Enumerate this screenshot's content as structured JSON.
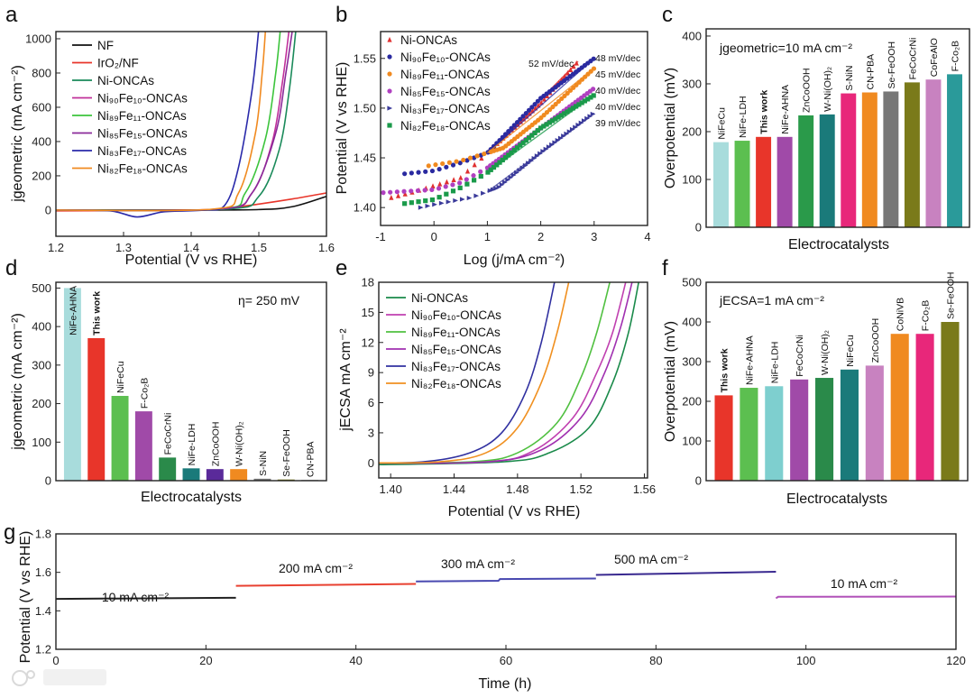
{
  "watermark": "大数跨境",
  "chart_data": [
    {
      "id": "a",
      "panel_label": "a",
      "type": "line",
      "xlabel": "Potential (V vs RHE)",
      "ylabel": "jgeometric (mA cm⁻²)",
      "xlim": [
        1.2,
        1.6
      ],
      "ylim": [
        -153,
        1042
      ],
      "xticks": [
        1.2,
        1.3,
        1.4,
        1.5,
        1.6
      ],
      "xtick_labels": [
        "1.2",
        "1.3",
        "1.4",
        "1.5",
        "1.6"
      ],
      "yticks": [
        0,
        200,
        400,
        600,
        800,
        1000
      ],
      "ytick_labels": [
        "0",
        "200",
        "400",
        "600",
        "800",
        "1000"
      ],
      "legend_position": "top-left",
      "series": [
        {
          "name": "NF",
          "color": "#111111",
          "points": [
            [
              1.2,
              0
            ],
            [
              1.4,
              0
            ],
            [
              1.5,
              3
            ],
            [
              1.55,
              20
            ],
            [
              1.6,
              80
            ]
          ]
        },
        {
          "name": "IrO₂/NF",
          "color": "#e8352a",
          "points": [
            [
              1.2,
              -5
            ],
            [
              1.4,
              0
            ],
            [
              1.45,
              10
            ],
            [
              1.5,
              35
            ],
            [
              1.55,
              65
            ],
            [
              1.6,
              100
            ]
          ]
        },
        {
          "name": "Ni-ONCAs",
          "color": "#1a8a5a",
          "points": [
            [
              1.2,
              0
            ],
            [
              1.45,
              5
            ],
            [
              1.5,
              80
            ],
            [
              1.53,
              350
            ],
            [
              1.545,
              700
            ],
            [
              1.555,
              1060
            ]
          ]
        },
        {
          "name": "Ni₉₀Fe₁₀-ONCAs",
          "color": "#c0309a",
          "points": [
            [
              1.2,
              0
            ],
            [
              1.44,
              5
            ],
            [
              1.49,
              100
            ],
            [
              1.52,
              400
            ],
            [
              1.535,
              750
            ],
            [
              1.545,
              1060
            ]
          ]
        },
        {
          "name": "Ni₈₉Fe₁₁-ONCAs",
          "color": "#3cc43c",
          "points": [
            [
              1.2,
              0
            ],
            [
              1.44,
              5
            ],
            [
              1.48,
              100
            ],
            [
              1.51,
              420
            ],
            [
              1.525,
              800
            ],
            [
              1.532,
              1060
            ]
          ]
        },
        {
          "name": "Ni₈₅Fe₁₅-ONCAs",
          "color": "#8a2a9a",
          "points": [
            [
              1.2,
              0
            ],
            [
              1.44,
              5
            ],
            [
              1.49,
              100
            ],
            [
              1.525,
              450
            ],
            [
              1.54,
              800
            ],
            [
              1.55,
              1060
            ]
          ]
        },
        {
          "name": "Ni₈₃Fe₁₇-ONCAs",
          "color": "#2a2aaa",
          "points": [
            [
              1.2,
              0
            ],
            [
              1.28,
              -5
            ],
            [
              1.32,
              -40
            ],
            [
              1.36,
              -10
            ],
            [
              1.42,
              0
            ],
            [
              1.45,
              30
            ],
            [
              1.47,
              250
            ],
            [
              1.49,
              700
            ],
            [
              1.5,
              1060
            ]
          ]
        },
        {
          "name": "Ni₈₂Fe₁₈-ONCAs",
          "color": "#f08a20",
          "points": [
            [
              1.2,
              0
            ],
            [
              1.43,
              5
            ],
            [
              1.47,
              100
            ],
            [
              1.495,
              450
            ],
            [
              1.505,
              800
            ],
            [
              1.51,
              1060
            ]
          ]
        }
      ]
    },
    {
      "id": "b",
      "panel_label": "b",
      "type": "scatter",
      "xlabel": "Log (j/mA cm⁻²)",
      "ylabel": "Potential (V vs RHE)",
      "xlim": [
        -1,
        4
      ],
      "ylim": [
        1.382,
        1.577
      ],
      "xticks": [
        -1,
        0,
        1,
        2,
        3,
        4
      ],
      "xtick_labels": [
        "-1",
        "0",
        "1",
        "2",
        "3",
        "4"
      ],
      "yticks": [
        1.4,
        1.45,
        1.5,
        1.55
      ],
      "ytick_labels": [
        "1.40",
        "1.45",
        "1.50",
        "1.55"
      ],
      "legend_position": "top-left",
      "series": [
        {
          "name": "Ni-ONCAs",
          "color": "#e03030",
          "marker": "triangle",
          "tafel_slope": "52 mV/dec",
          "points": [
            [
              -0.8,
              1.41
            ],
            [
              -0.3,
              1.417
            ],
            [
              0.5,
              1.43
            ],
            [
              1,
              1.455
            ],
            [
              2,
              1.505
            ],
            [
              2.7,
              1.547
            ]
          ]
        },
        {
          "name": "Ni₉₀Fe₁₀-ONCAs",
          "color": "#2a2aa0",
          "marker": "circle",
          "tafel_slope": "48 mV/dec",
          "points": [
            [
              -0.55,
              1.434
            ],
            [
              0,
              1.437
            ],
            [
              0.5,
              1.445
            ],
            [
              1,
              1.455
            ],
            [
              2,
              1.51
            ],
            [
              3,
              1.55
            ]
          ]
        },
        {
          "name": "Ni₈₉Fe₁₁-ONCAs",
          "color": "#f08a20",
          "marker": "circle",
          "tafel_slope": "45 mV/dec",
          "points": [
            [
              -0.1,
              1.442
            ],
            [
              0.5,
              1.447
            ],
            [
              1,
              1.455
            ],
            [
              1.3,
              1.46
            ],
            [
              2,
              1.49
            ],
            [
              3,
              1.54
            ]
          ]
        },
        {
          "name": "Ni₈₅Fe₁₅-ONCAs",
          "color": "#b040c0",
          "marker": "circle",
          "tafel_slope": "40 mV/dec",
          "points": [
            [
              -0.95,
              1.415
            ],
            [
              0,
              1.418
            ],
            [
              0.5,
              1.425
            ],
            [
              1,
              1.44
            ],
            [
              2,
              1.48
            ],
            [
              3,
              1.52
            ]
          ]
        },
        {
          "name": "Ni₈₃Fe₁₇-ONCAs",
          "color": "#3a3a9a",
          "marker": "triangle-right",
          "tafel_slope": "39 mV/dec",
          "points": [
            [
              -0.25,
              1.4
            ],
            [
              0,
              1.403
            ],
            [
              0.7,
              1.41
            ],
            [
              1.2,
              1.42
            ],
            [
              2,
              1.455
            ],
            [
              3,
              1.495
            ]
          ]
        },
        {
          "name": "Ni₈₂Fe₁₈-ONCAs",
          "color": "#1a9a4a",
          "marker": "square",
          "tafel_slope": "40 mV/dec",
          "points": [
            [
              -0.55,
              1.404
            ],
            [
              0,
              1.408
            ],
            [
              0.5,
              1.42
            ],
            [
              1,
              1.435
            ],
            [
              2,
              1.48
            ],
            [
              3,
              1.513
            ]
          ]
        }
      ]
    },
    {
      "id": "c",
      "panel_label": "c",
      "type": "bar",
      "xlabel": "Electrocatalysts",
      "ylabel": "Overpotential (mV)",
      "annotation": "jgeometric=10 mA cm⁻²",
      "ylim": [
        0,
        415
      ],
      "yticks": [
        0,
        100,
        200,
        300,
        400
      ],
      "ytick_labels": [
        "0",
        "100",
        "200",
        "300",
        "400"
      ],
      "categories": [
        "NiFeCu",
        "NiFe-LDH",
        "This work",
        "NiFe-AHNA",
        "ZnCoOOH",
        "W-Ni(OH)₂",
        "S-NiN",
        "CN-PBA",
        "Se-FeOOH",
        "FeCoCrNi",
        "CoFeAlO",
        "F-Co₂B"
      ],
      "values": [
        178,
        181,
        189,
        189,
        234,
        236,
        280,
        282,
        284,
        303,
        309,
        320
      ],
      "colors": [
        "#a8dcdc",
        "#5cbf50",
        "#e8352a",
        "#a04aa8",
        "#2a9a4a",
        "#1a7a7a",
        "#e8277a",
        "#f08a20",
        "#777777",
        "#7a7a1a",
        "#c882c0",
        "#2a9a9a"
      ],
      "highlight": "This work"
    },
    {
      "id": "d",
      "panel_label": "d",
      "type": "bar",
      "xlabel": "Electrocatalysts",
      "ylabel": "jgeometric (mA cm⁻²)",
      "annotation": "η= 250 mV",
      "ylim": [
        0,
        515
      ],
      "yticks": [
        0,
        100,
        200,
        300,
        400,
        500
      ],
      "ytick_labels": [
        "0",
        "100",
        "200",
        "300",
        "400",
        "500"
      ],
      "categories": [
        "NiFe-AHNA",
        "This work",
        "NiFeCu",
        "F-Co₂B",
        "FeCoCrNi",
        "NiFe-LDH",
        "ZnCoOOH",
        "W-Ni(OH)₂",
        "S-NiN",
        "Se-FeOOH",
        "CN-PBA"
      ],
      "values": [
        500,
        370,
        220,
        180,
        60,
        32,
        30,
        30,
        5,
        3,
        2
      ],
      "colors": [
        "#a8dcdc",
        "#e8352a",
        "#5cbf50",
        "#a04aa8",
        "#2a8a4a",
        "#1a7a7a",
        "#5a2a9a",
        "#f08a20",
        "#777777",
        "#7a7a1a",
        "#aaaaaa"
      ],
      "highlight": "This work"
    },
    {
      "id": "e",
      "panel_label": "e",
      "type": "line",
      "xlabel": "Potential (V vs RHE)",
      "ylabel": "jECSA mA cm⁻²",
      "xlim": [
        1.3925,
        1.562
      ],
      "ylim": [
        -1.5,
        18
      ],
      "xticks": [
        1.4,
        1.44,
        1.48,
        1.52,
        1.56
      ],
      "xtick_labels": [
        "1.40",
        "1.44",
        "1.48",
        "1.52",
        "1.56"
      ],
      "yticks": [
        0,
        3,
        6,
        9,
        12,
        15,
        18
      ],
      "ytick_labels": [
        "0",
        "3",
        "6",
        "9",
        "12",
        "15",
        "18"
      ],
      "legend_position": "top-left",
      "series": [
        {
          "name": "Ni-ONCAs",
          "color": "#1a8a4a",
          "points": [
            [
              1.38,
              -0.2
            ],
            [
              1.47,
              0.1
            ],
            [
              1.5,
              1
            ],
            [
              1.525,
              3.5
            ],
            [
              1.54,
              8
            ],
            [
              1.55,
              13
            ],
            [
              1.557,
              18.5
            ]
          ]
        },
        {
          "name": "Ni₉₀Fe₁₀-ONCAs",
          "color": "#c040b0",
          "points": [
            [
              1.38,
              0
            ],
            [
              1.46,
              0.1
            ],
            [
              1.49,
              1.2
            ],
            [
              1.515,
              4.5
            ],
            [
              1.53,
              9
            ],
            [
              1.54,
              13
            ],
            [
              1.549,
              18.5
            ]
          ]
        },
        {
          "name": "Ni₈₉Fe₁₁-ONCAs",
          "color": "#50c040",
          "points": [
            [
              1.38,
              0
            ],
            [
              1.45,
              0.1
            ],
            [
              1.48,
              1
            ],
            [
              1.505,
              4
            ],
            [
              1.52,
              8.5
            ],
            [
              1.53,
              13
            ],
            [
              1.539,
              18.5
            ]
          ]
        },
        {
          "name": "Ni₈₅Fe₁₅-ONCAs",
          "color": "#a030b0",
          "points": [
            [
              1.38,
              0
            ],
            [
              1.46,
              0.1
            ],
            [
              1.495,
              1.3
            ],
            [
              1.52,
              4.5
            ],
            [
              1.535,
              9
            ],
            [
              1.545,
              13.5
            ],
            [
              1.553,
              18.5
            ]
          ]
        },
        {
          "name": "Ni₈₃Fe₁₇-ONCAs",
          "color": "#3030a0",
          "points": [
            [
              1.38,
              0
            ],
            [
              1.42,
              0.1
            ],
            [
              1.45,
              1
            ],
            [
              1.47,
              3
            ],
            [
              1.485,
              7
            ],
            [
              1.495,
              12
            ],
            [
              1.504,
              18.5
            ]
          ]
        },
        {
          "name": "Ni₈₂Fe₁₈-ONCAs",
          "color": "#f09020",
          "points": [
            [
              1.38,
              0
            ],
            [
              1.43,
              0.1
            ],
            [
              1.46,
              1
            ],
            [
              1.48,
              3.5
            ],
            [
              1.495,
              8
            ],
            [
              1.505,
              13
            ],
            [
              1.513,
              18.5
            ]
          ]
        }
      ]
    },
    {
      "id": "f",
      "panel_label": "f",
      "type": "bar",
      "xlabel": "Electrocatalysts",
      "ylabel": "Overpotential (mV)",
      "annotation": "jECSA=1 mA cm⁻²",
      "ylim": [
        0,
        500
      ],
      "yticks": [
        0,
        100,
        200,
        300,
        400,
        500
      ],
      "ytick_labels": [
        "0",
        "100",
        "200",
        "300",
        "400",
        "500"
      ],
      "categories": [
        "This work",
        "NiFe-AHNA",
        "NiFe-LDH",
        "FeCoCrNi",
        "W-Ni(OH)₂",
        "NiFeCu",
        "ZnCoOOH",
        "CoNiVB",
        "F-Co₂B",
        "Se-FeOOH"
      ],
      "values": [
        215,
        234,
        238,
        255,
        259,
        280,
        290,
        370,
        370,
        400
      ],
      "colors": [
        "#e8352a",
        "#5cbf50",
        "#7ecfcf",
        "#a04aa8",
        "#2a8a4a",
        "#1a7a7a",
        "#c882c0",
        "#f08a20",
        "#e8277a",
        "#7a7a1a"
      ],
      "highlight": "This work"
    },
    {
      "id": "g",
      "panel_label": "g",
      "type": "line",
      "xlabel": "Time (h)",
      "ylabel": "Potential (V vs RHE)",
      "xlim": [
        0,
        120
      ],
      "ylim": [
        1.2,
        1.8
      ],
      "xticks": [
        0,
        20,
        40,
        60,
        80,
        100,
        120
      ],
      "xtick_labels": [
        "0",
        "20",
        "40",
        "60",
        "80",
        "100",
        "120"
      ],
      "yticks": [
        1.2,
        1.4,
        1.6,
        1.8
      ],
      "ytick_labels": [
        "1.2",
        "1.4",
        "1.6",
        "1.8"
      ],
      "series": [
        {
          "name": "10 mA cm⁻²",
          "color": "#222222",
          "points": [
            [
              0,
              1.462
            ],
            [
              24,
              1.468
            ]
          ]
        },
        {
          "name": "200 mA cm⁻²",
          "color": "#e84030",
          "points": [
            [
              24,
              1.53
            ],
            [
              48,
              1.54
            ]
          ]
        },
        {
          "name": "300 mA cm⁻²",
          "color": "#4848b0",
          "points": [
            [
              48,
              1.553
            ],
            [
              59,
              1.556
            ],
            [
              59.2,
              1.565
            ],
            [
              72,
              1.568
            ]
          ]
        },
        {
          "name": "500 mA cm⁻²",
          "color": "#3a2a90",
          "points": [
            [
              72,
              1.587
            ],
            [
              96,
              1.603
            ]
          ]
        },
        {
          "name": "10 mA cm⁻²",
          "color": "#b050b8",
          "points": [
            [
              96,
              1.465
            ],
            [
              96.3,
              1.473
            ],
            [
              120,
              1.474
            ]
          ]
        }
      ]
    }
  ]
}
